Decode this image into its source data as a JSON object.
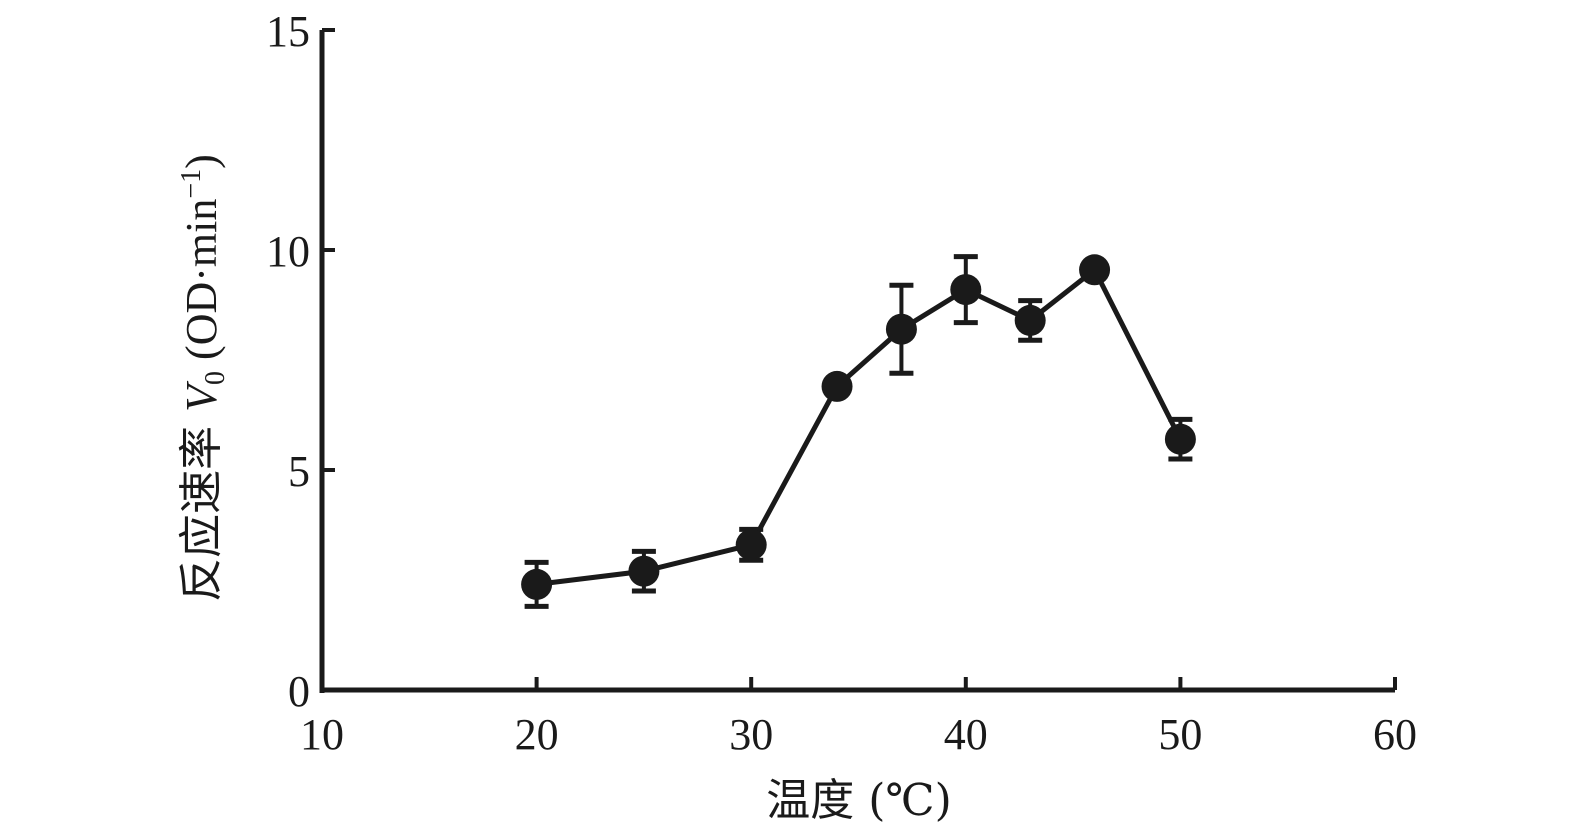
{
  "chart_data": {
    "type": "line",
    "title": "",
    "xlabel": "温度 (℃)",
    "ylabel_prefix": "反应速率 ",
    "ylabel_var": "V",
    "ylabel_sub": "0",
    "ylabel_unit": " (OD·min",
    "ylabel_sup": "−1",
    "ylabel_close": ")",
    "xlim": [
      10,
      60
    ],
    "ylim": [
      0,
      15
    ],
    "xticks": [
      10,
      20,
      30,
      40,
      50,
      60
    ],
    "yticks": [
      0,
      5,
      10,
      15
    ],
    "grid": false,
    "series": [
      {
        "x": [
          20,
          25,
          30,
          34,
          37,
          40,
          43,
          46,
          50
        ],
        "y": [
          2.4,
          2.7,
          3.3,
          6.9,
          8.2,
          9.1,
          8.4,
          9.55,
          5.7
        ],
        "err": [
          0.5,
          0.45,
          0.35,
          0.0,
          1.0,
          0.75,
          0.45,
          0.0,
          0.45
        ]
      }
    ],
    "colors": {
      "line": "#1a1a1a",
      "marker": "#1a1a1a"
    }
  }
}
